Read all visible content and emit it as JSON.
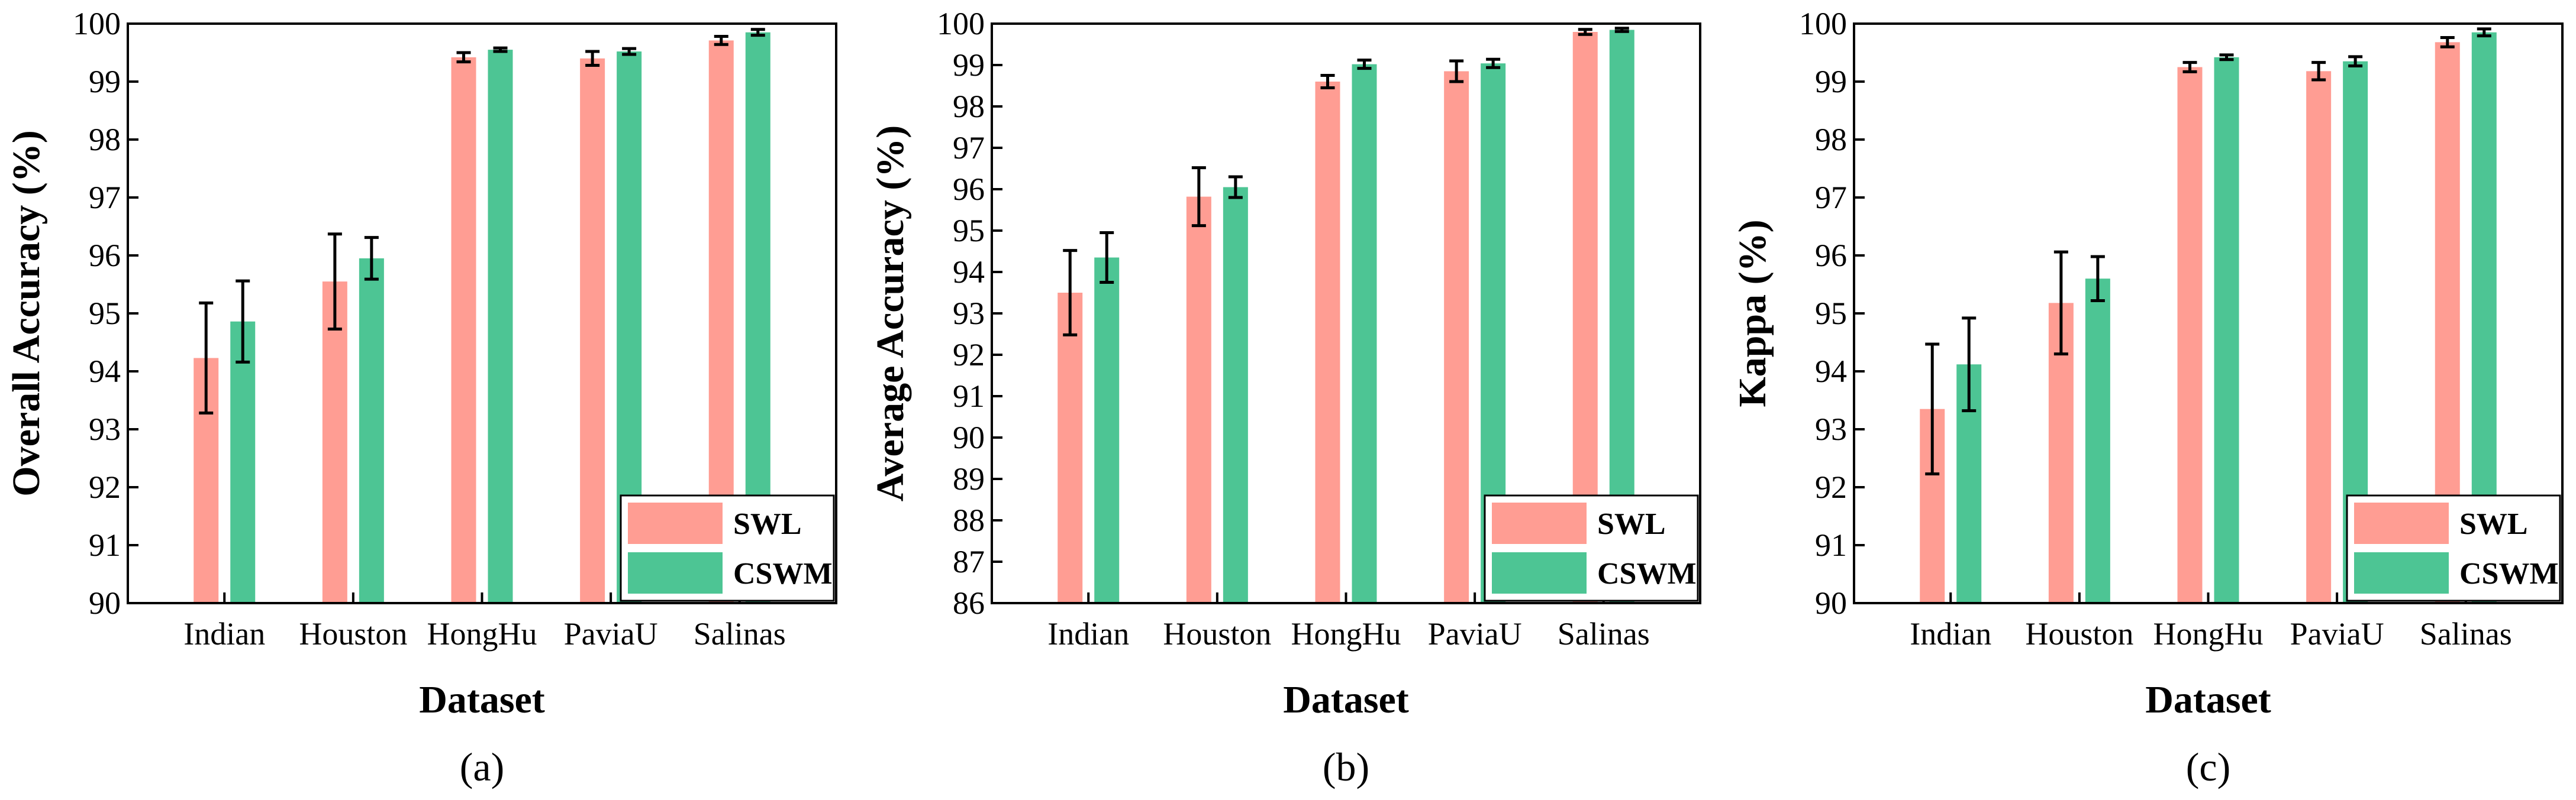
{
  "series_colors": {
    "SWL": "#ff9d93",
    "CSWM": "#4dc594"
  },
  "chart_data": [
    {
      "type": "bar",
      "panel": "(a)",
      "panel_letter": "a",
      "categories": [
        "Indian",
        "Houston",
        "HongHu",
        "PaviaU",
        "Salinas"
      ],
      "series": [
        {
          "name": "SWL",
          "values": [
            94.23,
            95.55,
            99.42,
            99.4,
            99.71
          ],
          "errors": [
            0.95,
            0.82,
            0.08,
            0.12,
            0.07
          ]
        },
        {
          "name": "CSWM",
          "values": [
            94.86,
            95.95,
            99.55,
            99.52,
            99.85
          ],
          "errors": [
            0.7,
            0.36,
            0.03,
            0.05,
            0.05
          ]
        }
      ],
      "xlabel": "Dataset",
      "ylabel": "Overall Accuracy (%)",
      "ylim": [
        90,
        100
      ],
      "yticks": [
        "90",
        "91",
        "92",
        "93",
        "94",
        "95",
        "96",
        "97",
        "98",
        "99",
        "100"
      ],
      "legend": "bottom-right"
    },
    {
      "type": "bar",
      "panel": "(b)",
      "panel_letter": "b",
      "categories": [
        "Indian",
        "Houston",
        "HongHu",
        "PaviaU",
        "Salinas"
      ],
      "series": [
        {
          "name": "SWL",
          "values": [
            93.5,
            95.82,
            98.6,
            98.85,
            99.8
          ],
          "errors": [
            1.02,
            0.7,
            0.15,
            0.25,
            0.06
          ]
        },
        {
          "name": "CSWM",
          "values": [
            94.35,
            96.05,
            99.02,
            99.04,
            99.85
          ],
          "errors": [
            0.6,
            0.25,
            0.1,
            0.1,
            0.04
          ]
        }
      ],
      "xlabel": "Dataset",
      "ylabel": "Average Accuracy (%)",
      "ylim": [
        86,
        100
      ],
      "yticks": [
        "86",
        "87",
        "88",
        "89",
        "90",
        "91",
        "92",
        "93",
        "94",
        "95",
        "96",
        "97",
        "98",
        "99",
        "100"
      ],
      "legend": "bottom-right"
    },
    {
      "type": "bar",
      "panel": "(c)",
      "panel_letter": "c",
      "categories": [
        "Indian",
        "Houston",
        "HongHu",
        "PaviaU",
        "Salinas"
      ],
      "series": [
        {
          "name": "SWL",
          "values": [
            93.35,
            95.18,
            99.25,
            99.18,
            99.68
          ],
          "errors": [
            1.12,
            0.88,
            0.08,
            0.15,
            0.08
          ]
        },
        {
          "name": "CSWM",
          "values": [
            94.12,
            95.6,
            99.42,
            99.35,
            99.85
          ],
          "errors": [
            0.8,
            0.38,
            0.04,
            0.08,
            0.06
          ]
        }
      ],
      "xlabel": "Dataset",
      "ylabel": "Kappa (%)",
      "ylim": [
        90,
        100
      ],
      "yticks": [
        "90",
        "91",
        "92",
        "93",
        "94",
        "95",
        "96",
        "97",
        "98",
        "99",
        "100"
      ],
      "legend": "bottom-right"
    }
  ]
}
